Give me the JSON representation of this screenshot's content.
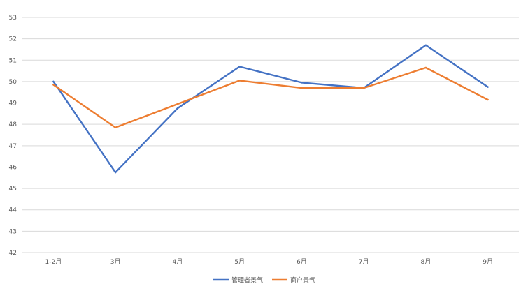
{
  "chart_data": {
    "type": "line",
    "title": "",
    "xlabel": "",
    "ylabel": "",
    "categories": [
      "1-2月",
      "3月",
      "4月",
      "5月",
      "6月",
      "7月",
      "8月",
      "9月"
    ],
    "ylim": [
      42,
      53
    ],
    "y_ticks": [
      42,
      43,
      44,
      45,
      46,
      47,
      48,
      49,
      50,
      51,
      52,
      53
    ],
    "grid": true,
    "legend": "bottom",
    "series": [
      {
        "name": "管理者景气",
        "color": "#4472C4",
        "values": [
          50.0,
          45.75,
          48.75,
          50.7,
          49.95,
          49.7,
          51.7,
          49.75
        ]
      },
      {
        "name": "商户景气",
        "color": "#ED7D31",
        "values": [
          49.85,
          47.85,
          48.95,
          50.05,
          49.7,
          49.7,
          50.65,
          49.15
        ]
      }
    ]
  }
}
